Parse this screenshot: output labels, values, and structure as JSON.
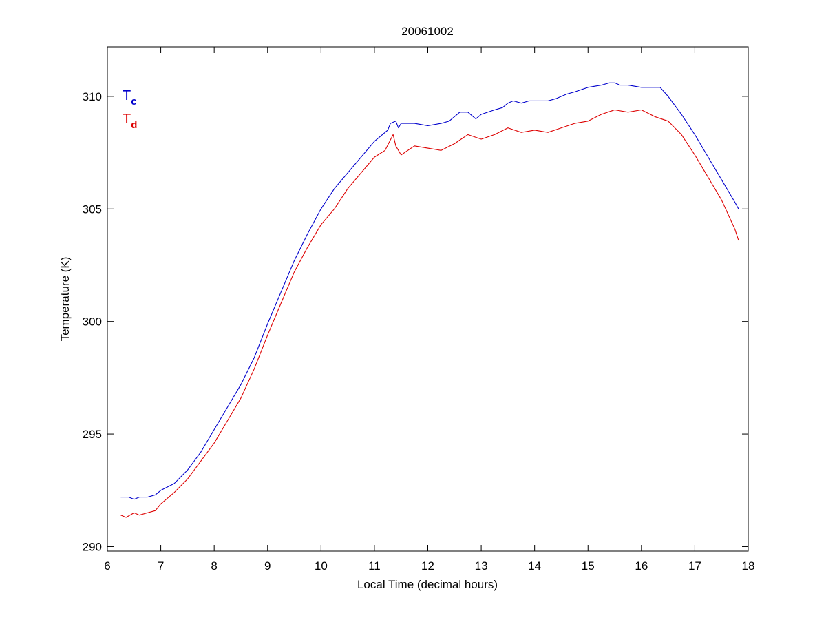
{
  "chart_data": {
    "type": "line",
    "title": "20061002",
    "xlabel": "Local Time (decimal hours)",
    "ylabel": "Temperature (K)",
    "xlim": [
      6,
      18
    ],
    "ylim": [
      289.8,
      312.2
    ],
    "xticks": [
      6,
      7,
      8,
      9,
      10,
      11,
      12,
      13,
      14,
      15,
      16,
      17,
      18
    ],
    "yticks": [
      290,
      295,
      300,
      305,
      310
    ],
    "grid": false,
    "legend": {
      "placement": "top-left",
      "entries": [
        {
          "base": "T",
          "sub": "c",
          "color": "#0000cc"
        },
        {
          "base": "T",
          "sub": "d",
          "color": "#dd0000"
        }
      ]
    },
    "series": [
      {
        "color": "#0000cc",
        "x": [
          6.25,
          6.4,
          6.5,
          6.6,
          6.75,
          6.9,
          7.0,
          7.25,
          7.5,
          7.75,
          8.0,
          8.25,
          8.5,
          8.75,
          9.0,
          9.25,
          9.5,
          9.75,
          10.0,
          10.25,
          10.5,
          10.75,
          11.0,
          11.25,
          11.3,
          11.4,
          11.45,
          11.5,
          11.75,
          12.0,
          12.25,
          12.4,
          12.5,
          12.6,
          12.75,
          12.9,
          13.0,
          13.25,
          13.4,
          13.5,
          13.6,
          13.75,
          13.9,
          14.0,
          14.25,
          14.4,
          14.5,
          14.6,
          14.75,
          15.0,
          15.25,
          15.4,
          15.5,
          15.6,
          15.75,
          16.0,
          16.25,
          16.35,
          16.5,
          16.75,
          17.0,
          17.25,
          17.5,
          17.75,
          17.82
        ],
        "values": [
          292.2,
          292.2,
          292.1,
          292.2,
          292.2,
          292.3,
          292.5,
          292.8,
          293.4,
          294.2,
          295.2,
          296.2,
          297.2,
          298.4,
          299.9,
          301.3,
          302.7,
          303.9,
          305.0,
          305.9,
          306.6,
          307.3,
          308.0,
          308.5,
          308.8,
          308.9,
          308.6,
          308.8,
          308.8,
          308.7,
          308.8,
          308.9,
          309.1,
          309.3,
          309.3,
          309.0,
          309.2,
          309.4,
          309.5,
          309.7,
          309.8,
          309.7,
          309.8,
          309.8,
          309.8,
          309.9,
          310.0,
          310.1,
          310.2,
          310.4,
          310.5,
          310.6,
          310.6,
          310.5,
          310.5,
          310.4,
          310.4,
          310.4,
          310.0,
          309.2,
          308.3,
          307.3,
          306.3,
          305.3,
          305.0
        ]
      },
      {
        "color": "#dd0000",
        "x": [
          6.25,
          6.35,
          6.5,
          6.6,
          6.75,
          6.9,
          7.0,
          7.25,
          7.5,
          7.75,
          8.0,
          8.25,
          8.5,
          8.75,
          9.0,
          9.25,
          9.5,
          9.75,
          10.0,
          10.25,
          10.5,
          10.75,
          11.0,
          11.2,
          11.35,
          11.4,
          11.5,
          11.75,
          12.0,
          12.25,
          12.5,
          12.75,
          13.0,
          13.25,
          13.5,
          13.75,
          14.0,
          14.25,
          14.5,
          14.75,
          15.0,
          15.25,
          15.5,
          15.75,
          16.0,
          16.25,
          16.5,
          16.75,
          17.0,
          17.25,
          17.5,
          17.75,
          17.82
        ],
        "values": [
          291.4,
          291.3,
          291.5,
          291.4,
          291.5,
          291.6,
          291.9,
          292.4,
          293.0,
          293.8,
          294.6,
          295.6,
          296.6,
          297.9,
          299.4,
          300.8,
          302.2,
          303.3,
          304.3,
          305.0,
          305.9,
          306.6,
          307.3,
          307.6,
          308.3,
          307.8,
          307.4,
          307.8,
          307.7,
          307.6,
          307.9,
          308.3,
          308.1,
          308.3,
          308.6,
          308.4,
          308.5,
          308.4,
          308.6,
          308.8,
          308.9,
          309.2,
          309.4,
          309.3,
          309.4,
          309.1,
          308.9,
          308.3,
          307.4,
          306.4,
          305.4,
          304.1,
          303.6
        ]
      }
    ]
  }
}
